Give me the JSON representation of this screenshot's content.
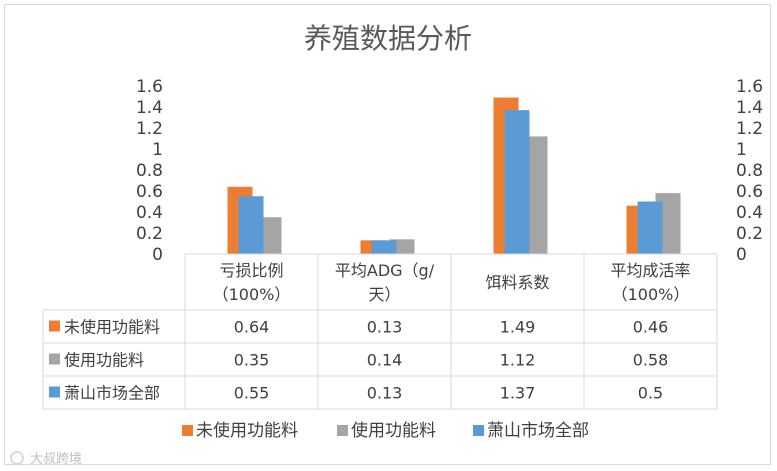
{
  "chart_data": {
    "type": "bar",
    "title": "养殖数据分析",
    "categories": [
      [
        "亏损比例",
        "（100%）"
      ],
      [
        "平均ADG（g/",
        "天）"
      ],
      [
        "饵料系数"
      ],
      [
        "平均成活率",
        "（100%）"
      ]
    ],
    "series": [
      {
        "name": "未使用功能料",
        "color": "#ED7D31",
        "values": [
          0.64,
          0.13,
          1.49,
          0.46
        ],
        "labels": [
          "0.64",
          "0.13",
          "1.49",
          "0.46"
        ]
      },
      {
        "name": "使用功能料",
        "color": "#A5A5A5",
        "values": [
          0.35,
          0.14,
          1.12,
          0.58
        ],
        "labels": [
          "0.35",
          "0.14",
          "1.12",
          "0.58"
        ]
      },
      {
        "name": "萧山市场全部",
        "color": "#5B9BD5",
        "values": [
          0.55,
          0.13,
          1.37,
          0.5
        ],
        "labels": [
          "0.55",
          "0.13",
          "1.37",
          "0.5"
        ]
      }
    ],
    "ylim": [
      0,
      1.6
    ],
    "yticks": [
      "0",
      "0.2",
      "0.4",
      "0.6",
      "0.8",
      "1",
      "1.2",
      "1.4",
      "1.6"
    ],
    "secondary_yticks": [
      "0",
      "0.2",
      "0.4",
      "0.6",
      "0.8",
      "1",
      "1.2",
      "1.4",
      "1.6"
    ],
    "grid": false,
    "data_table": true,
    "legend_position": "bottom"
  },
  "watermark": "大叔跨境"
}
